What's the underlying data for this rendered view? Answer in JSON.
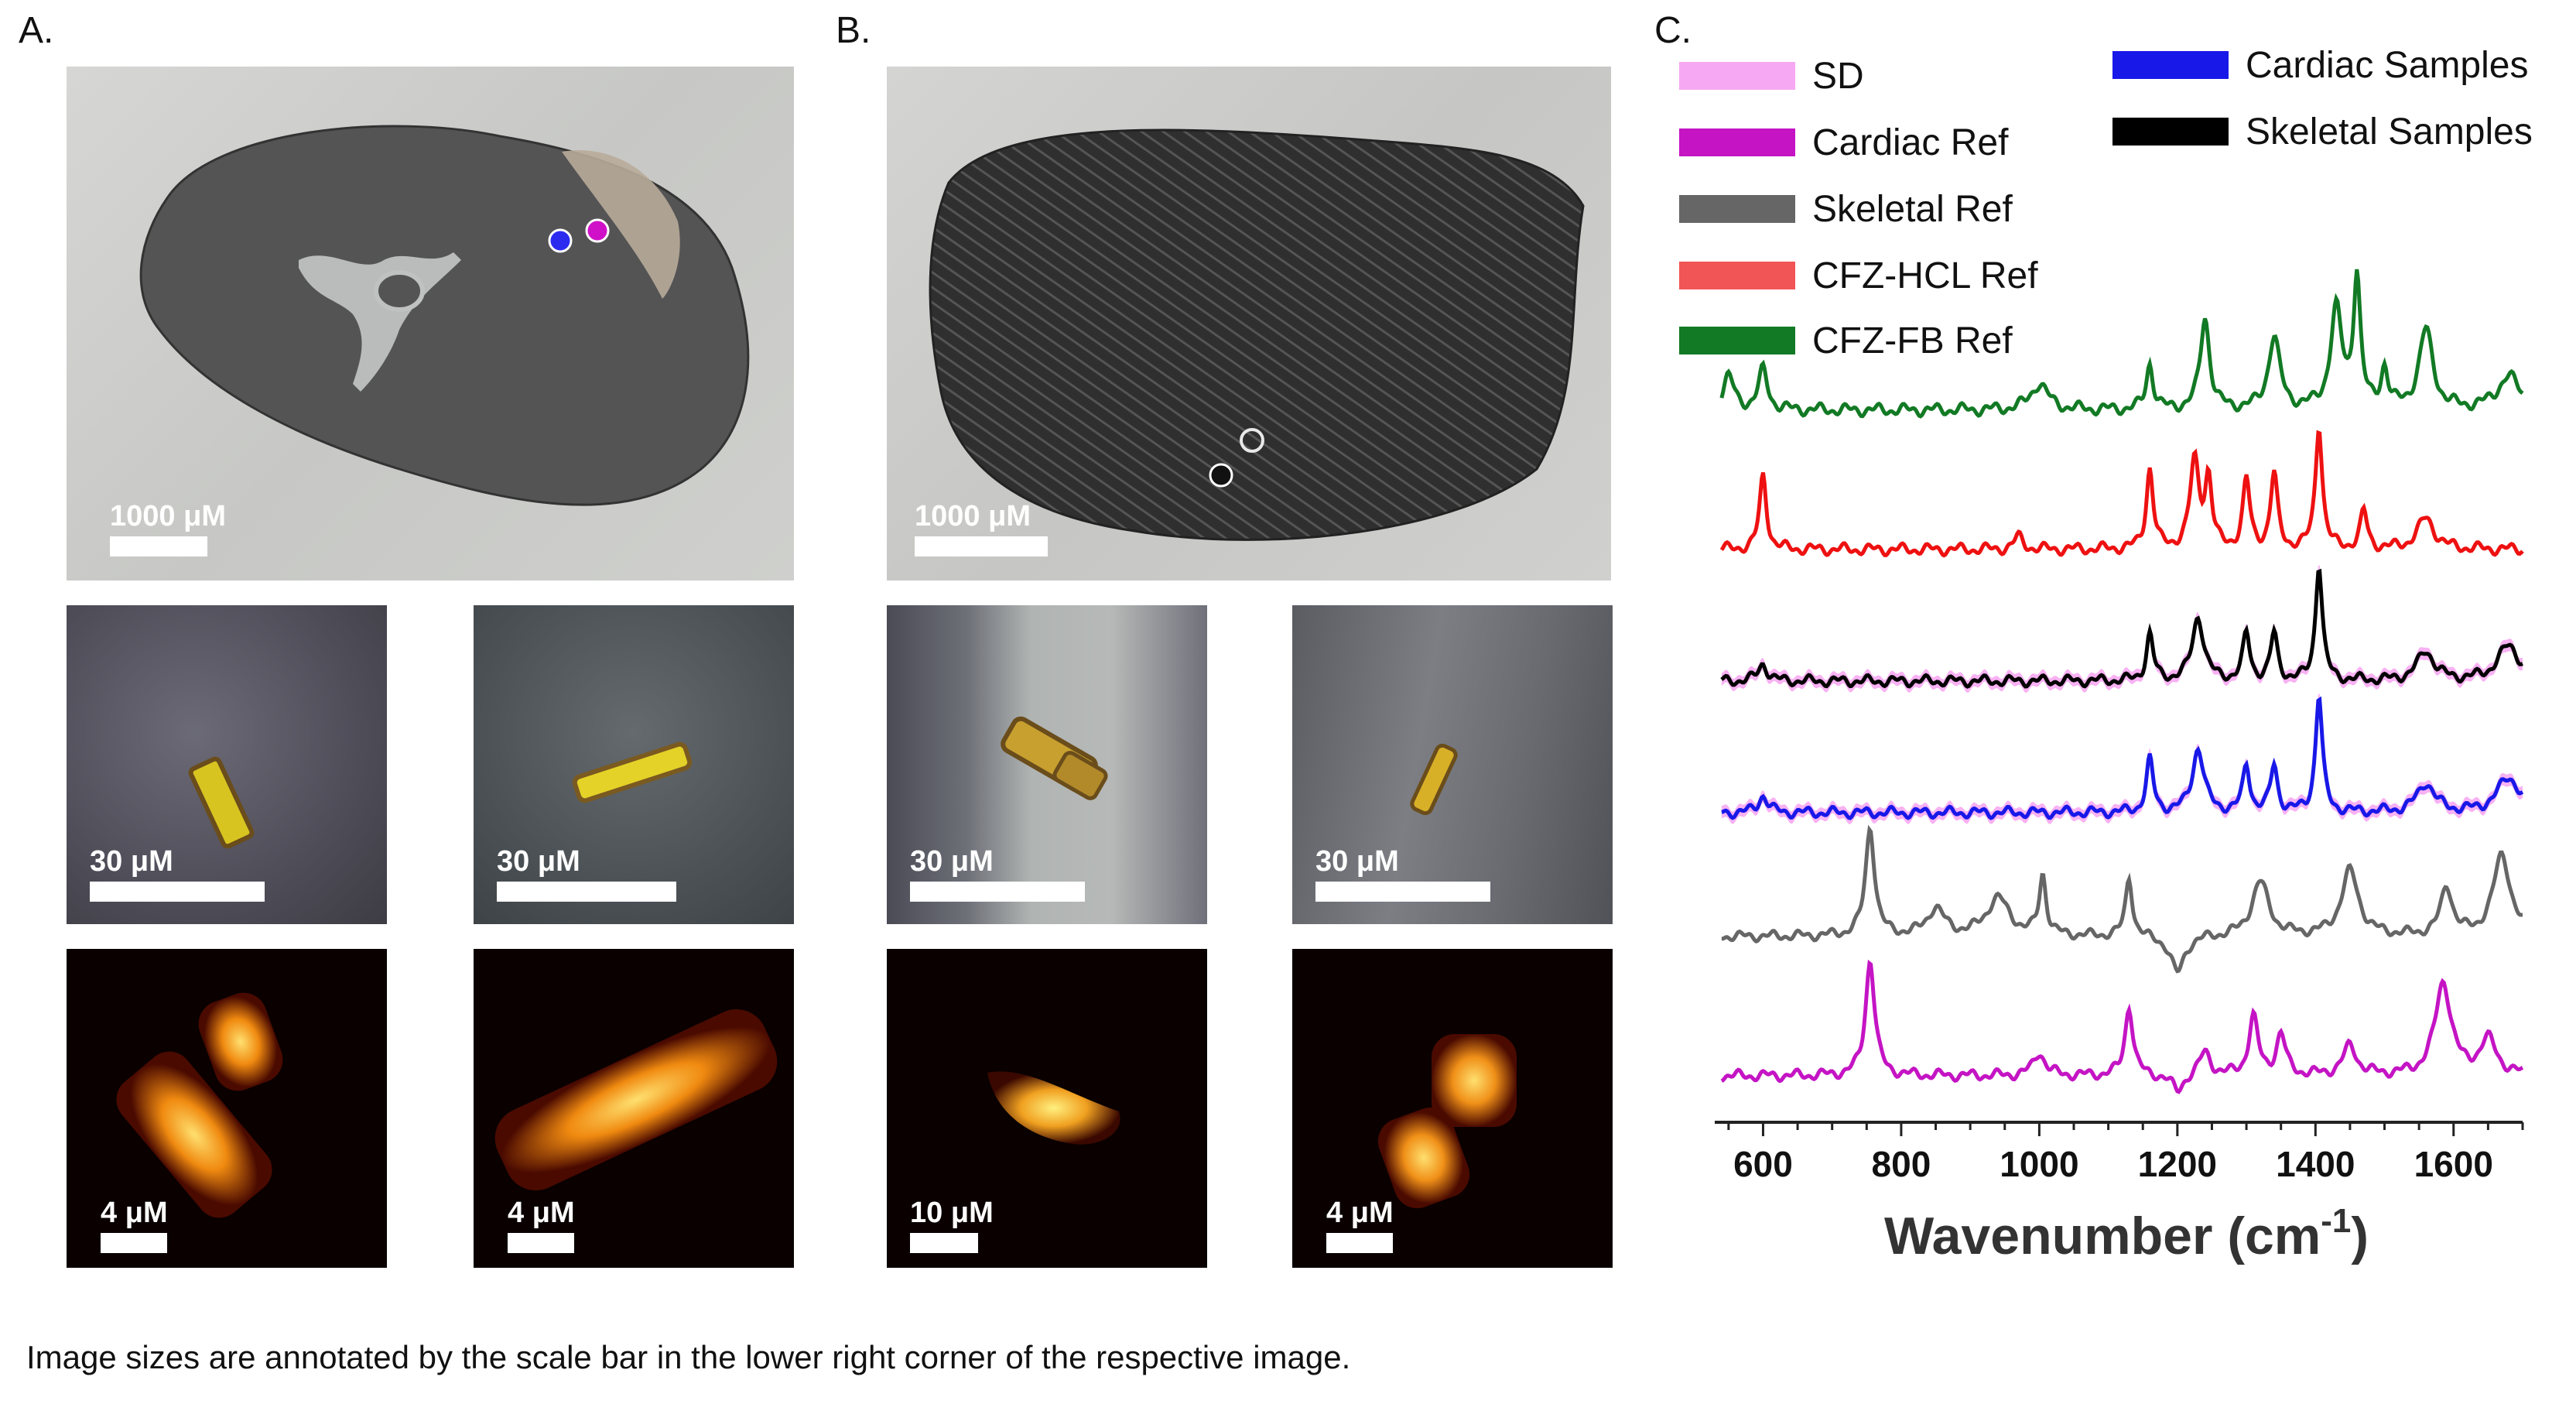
{
  "panels": {
    "A": {
      "label": "A.",
      "overview_scale": "1000 μM",
      "optical_scales": [
        "30 μM",
        "30 μM"
      ],
      "raman_scales": [
        "4 μM",
        "4 μM"
      ],
      "markers": [
        {
          "color": "#2b2bf0"
        },
        {
          "color": "#d010c8"
        }
      ]
    },
    "B": {
      "label": "B.",
      "overview_scale": "1000 μM",
      "optical_scales": [
        "30 μM",
        "30 μM"
      ],
      "raman_scales": [
        "10 μM",
        "4 μM"
      ],
      "markers": [
        {
          "color": "#111111"
        },
        {
          "color": "#ffffff"
        }
      ]
    },
    "C": {
      "label": "C."
    }
  },
  "caption": "Image sizes are annotated by the scale bar in the lower right corner of the respective image.",
  "chart_data": {
    "type": "line",
    "title": "",
    "xlabel": "Wavenumber (cm",
    "xlabel_sup": "-1",
    "xlim": [
      530,
      1700
    ],
    "xticks": [
      600,
      800,
      1000,
      1200,
      1400,
      1600
    ],
    "tick_labels": [
      "600",
      "800",
      "1000",
      "1200",
      "1400",
      "1600"
    ],
    "legend": [
      {
        "name": "SD",
        "color": "#f7a8f2"
      },
      {
        "name": "Cardiac Ref",
        "color": "#c414c4"
      },
      {
        "name": "Skeletal Ref",
        "color": "#666666"
      },
      {
        "name": "CFZ-HCL Ref",
        "color": "#f25555"
      },
      {
        "name": "CFZ-FB Ref",
        "color": "#127a24"
      },
      {
        "name": "Cardiac Samples",
        "color": "#1818e8"
      },
      {
        "name": "Skeletal Samples",
        "color": "#000000"
      }
    ],
    "series": [
      {
        "name": "CFZ-FB Ref",
        "color": "#127a24",
        "peaks": [
          [
            550,
            0.25,
            10
          ],
          [
            600,
            0.3,
            8
          ],
          [
            1000,
            0.2,
            15
          ],
          [
            1160,
            0.35,
            6
          ],
          [
            1240,
            0.7,
            8
          ],
          [
            1340,
            0.55,
            10
          ],
          [
            1430,
            0.75,
            10
          ],
          [
            1460,
            1.0,
            6
          ],
          [
            1500,
            0.3,
            6
          ],
          [
            1560,
            0.6,
            12
          ],
          [
            1680,
            0.25,
            20
          ]
        ]
      },
      {
        "name": "CFZ-HCL Ref",
        "color": "#ee1111",
        "peaks": [
          [
            600,
            0.6,
            6
          ],
          [
            970,
            0.1,
            8
          ],
          [
            1160,
            0.65,
            6
          ],
          [
            1225,
            0.7,
            8
          ],
          [
            1245,
            0.55,
            6
          ],
          [
            1300,
            0.55,
            6
          ],
          [
            1340,
            0.6,
            6
          ],
          [
            1405,
            1.0,
            6
          ],
          [
            1470,
            0.3,
            6
          ],
          [
            1560,
            0.25,
            15
          ]
        ]
      },
      {
        "name": "Skeletal Samples",
        "color": "#000000",
        "sd": true,
        "peaks": [
          [
            600,
            0.15,
            8
          ],
          [
            1160,
            0.4,
            6
          ],
          [
            1230,
            0.55,
            10
          ],
          [
            1300,
            0.4,
            6
          ],
          [
            1340,
            0.4,
            6
          ],
          [
            1405,
            1.0,
            6
          ],
          [
            1560,
            0.25,
            15
          ],
          [
            1680,
            0.3,
            20
          ]
        ]
      },
      {
        "name": "Cardiac Samples",
        "color": "#1818e8",
        "sd": true,
        "peaks": [
          [
            600,
            0.15,
            8
          ],
          [
            1160,
            0.45,
            6
          ],
          [
            1230,
            0.55,
            10
          ],
          [
            1300,
            0.4,
            6
          ],
          [
            1340,
            0.4,
            6
          ],
          [
            1405,
            1.0,
            6
          ],
          [
            1560,
            0.25,
            15
          ],
          [
            1680,
            0.3,
            20
          ]
        ]
      },
      {
        "name": "Skeletal Ref",
        "color": "#666666",
        "peaks": [
          [
            755,
            1.0,
            8
          ],
          [
            850,
            0.25,
            15
          ],
          [
            940,
            0.35,
            20
          ],
          [
            1005,
            0.55,
            6
          ],
          [
            1130,
            0.55,
            6
          ],
          [
            1200,
            -0.35,
            12
          ],
          [
            1320,
            0.5,
            15
          ],
          [
            1450,
            0.6,
            15
          ],
          [
            1590,
            0.45,
            10
          ],
          [
            1670,
            0.75,
            15
          ]
        ]
      },
      {
        "name": "Cardiac Ref",
        "color": "#c414c4",
        "peaks": [
          [
            755,
            1.0,
            8
          ],
          [
            1000,
            0.2,
            10
          ],
          [
            1130,
            0.6,
            7
          ],
          [
            1200,
            -0.15,
            10
          ],
          [
            1240,
            0.2,
            10
          ],
          [
            1310,
            0.5,
            8
          ],
          [
            1350,
            0.35,
            8
          ],
          [
            1450,
            0.25,
            12
          ],
          [
            1585,
            0.8,
            14
          ],
          [
            1650,
            0.3,
            15
          ]
        ]
      }
    ]
  }
}
